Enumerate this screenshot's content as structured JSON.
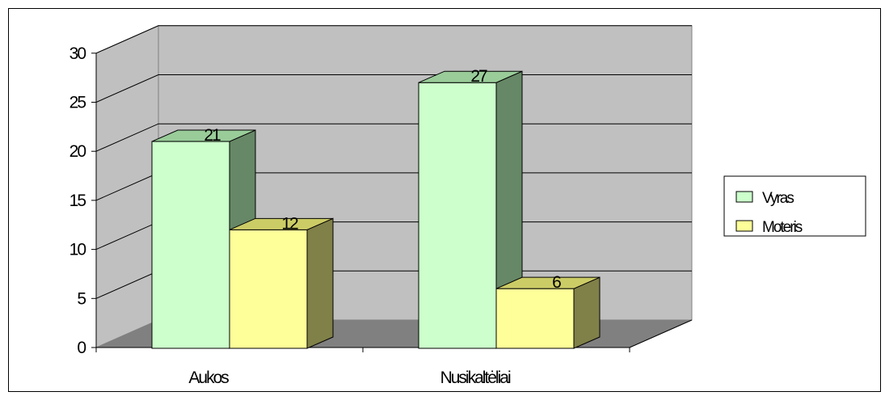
{
  "chart_data": {
    "type": "bar",
    "categories": [
      "Aukos",
      "Nusikaltėliai"
    ],
    "series": [
      {
        "name": "Vyras",
        "values": [
          21,
          27
        ],
        "front_color": "#CCFFCC",
        "top_color": "#99CC99",
        "side_color": "#668866"
      },
      {
        "name": "Moteris",
        "values": [
          12,
          6
        ],
        "front_color": "#FFFF99",
        "top_color": "#CCCC66",
        "side_color": "#808049"
      }
    ],
    "ylim": [
      0,
      30
    ],
    "yticks": [
      0,
      5,
      10,
      15,
      20,
      25,
      30
    ],
    "grid": true,
    "legend_position": "right",
    "style": "3d-clustered-column",
    "title": "",
    "xlabel": "",
    "ylabel": ""
  },
  "colors": {
    "back_wall": "#C0C0C0",
    "side_wall": "#C0C0C0",
    "floor": "#808080",
    "gridline": "#000000"
  }
}
